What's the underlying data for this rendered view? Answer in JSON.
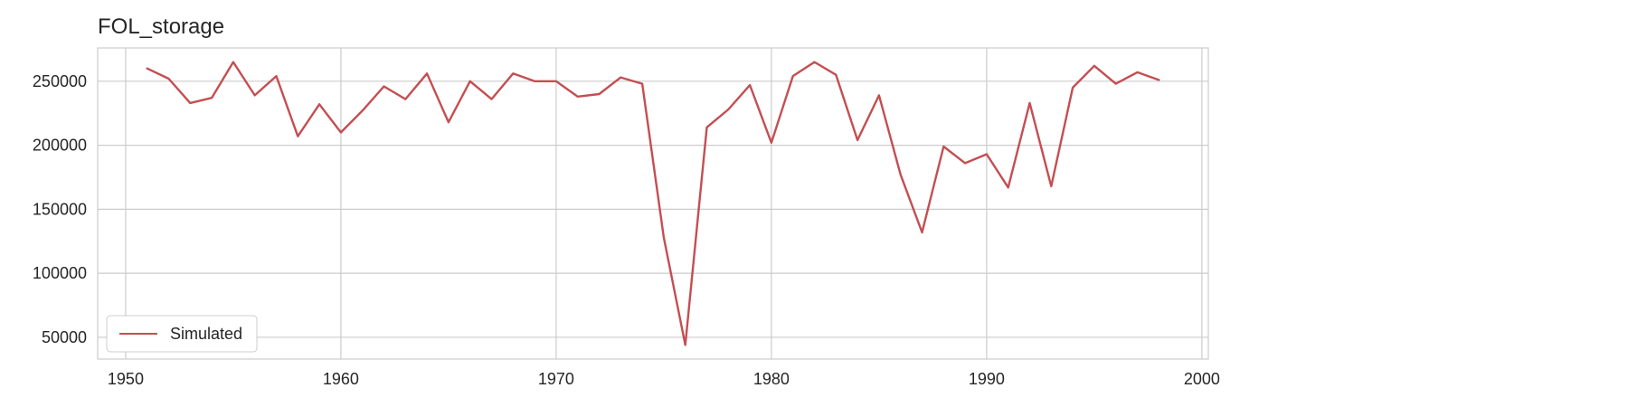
{
  "chart_data": {
    "type": "line",
    "title": "FOL_storage",
    "xlabel": "",
    "ylabel": "",
    "xlim": [
      1948.7,
      2000.3
    ],
    "ylim": [
      33000,
      276000
    ],
    "grid": true,
    "legend_placement": "lower-left",
    "xticks": [
      1950,
      1960,
      1970,
      1980,
      1990,
      2000
    ],
    "xtick_labels": [
      "1950",
      "1960",
      "1970",
      "1980",
      "1990",
      "2000"
    ],
    "yticks": [
      50000,
      100000,
      150000,
      200000,
      250000
    ],
    "ytick_labels": [
      "50000",
      "100000",
      "150000",
      "200000",
      "250000"
    ],
    "series": [
      {
        "name": "Simulated",
        "color": "#c44e52",
        "x": [
          1951,
          1952,
          1953,
          1954,
          1955,
          1956,
          1957,
          1958,
          1959,
          1960,
          1961,
          1962,
          1963,
          1964,
          1965,
          1966,
          1967,
          1968,
          1969,
          1970,
          1971,
          1972,
          1973,
          1974,
          1975,
          1976,
          1977,
          1978,
          1979,
          1980,
          1981,
          1982,
          1983,
          1984,
          1985,
          1986,
          1987,
          1988,
          1989,
          1990,
          1991,
          1992,
          1993,
          1994,
          1995,
          1996,
          1997,
          1998
        ],
        "y": [
          260000,
          252000,
          233000,
          237000,
          265000,
          239000,
          254000,
          207000,
          232000,
          210000,
          227000,
          246000,
          236000,
          256000,
          218000,
          250000,
          236000,
          256000,
          250000,
          250000,
          238000,
          240000,
          253000,
          248000,
          128000,
          44000,
          214000,
          228000,
          247000,
          202000,
          254000,
          265000,
          255000,
          204000,
          239000,
          177000,
          132000,
          199000,
          186000,
          193000,
          167000,
          233000,
          168000,
          245000,
          262000,
          248000,
          257000,
          251000
        ]
      }
    ]
  }
}
